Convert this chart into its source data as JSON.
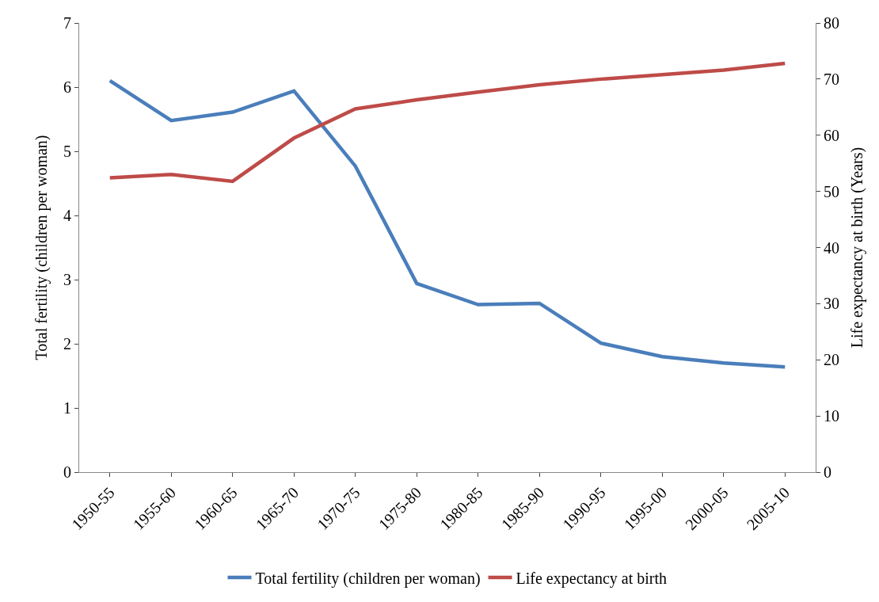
{
  "chart_data": {
    "type": "line",
    "categories": [
      "1950-55",
      "1955-60",
      "1960-65",
      "1965-70",
      "1970-75",
      "1975-80",
      "1980-85",
      "1985-90",
      "1990-95",
      "1995-00",
      "2000-05",
      "2005-10"
    ],
    "series": [
      {
        "name": "Total fertility (children per woman)",
        "color": "#4a7ebb",
        "values": [
          6.1,
          5.48,
          5.61,
          5.94,
          4.77,
          2.94,
          2.61,
          2.63,
          2.01,
          1.8,
          1.7,
          1.64
        ]
      },
      {
        "name": "Life expectancy at birth",
        "color": "#be4b48",
        "axis": "y2",
        "values": [
          52.4,
          53.0,
          51.8,
          59.5,
          64.7,
          66.3,
          67.7,
          69.0,
          70.0,
          70.8,
          71.6,
          72.8
        ]
      }
    ],
    "ylabel": "Total fertility (children per woman)",
    "y2label": "Life expectancy at birth (Years)",
    "ylim": [
      0,
      7
    ],
    "yticks": [
      0,
      1,
      2,
      3,
      4,
      5,
      6,
      7
    ],
    "y2lim": [
      0,
      80
    ],
    "y2ticks": [
      0,
      10,
      20,
      30,
      40,
      50,
      60,
      70,
      80
    ],
    "grid": false,
    "legend": "bottom",
    "marker": "none",
    "line_style": "solid"
  }
}
